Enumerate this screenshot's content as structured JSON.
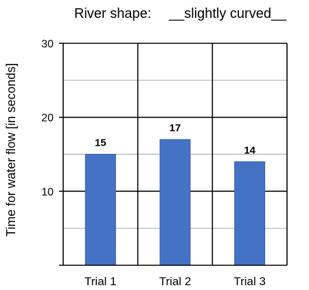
{
  "header": {
    "prefix": "River shape:",
    "value": "__slightly curved__"
  },
  "chart_data": {
    "type": "bar",
    "title": "",
    "xlabel": "",
    "ylabel": "Time for water flow [in seconds]",
    "categories": [
      "Trial 1",
      "Trial 2",
      "Trial 3"
    ],
    "values": [
      15,
      17,
      14
    ],
    "ylim": [
      0,
      30
    ],
    "y_ticks": [
      10,
      20,
      30
    ],
    "y_minor_gridlines": [
      5,
      15,
      25
    ],
    "grid": true,
    "legend": "none",
    "colors": {
      "bar": "#4472c4",
      "bar_edge": "#3a5fa8",
      "major_grid": "#000000",
      "minor_grid": "#b0b0b0"
    }
  }
}
